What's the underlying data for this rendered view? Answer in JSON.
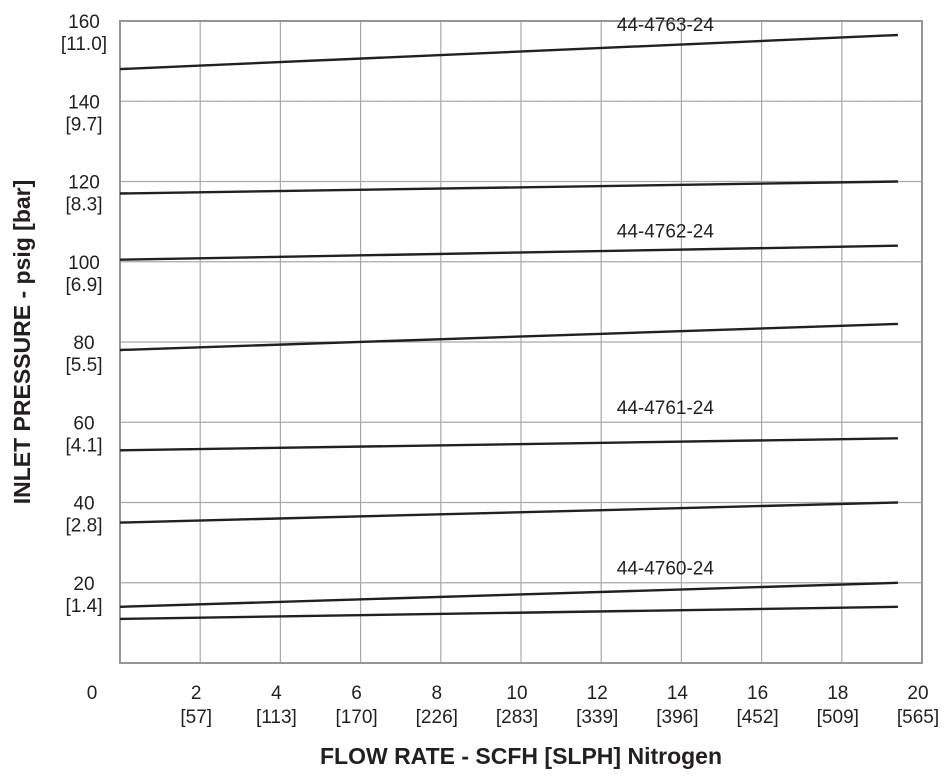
{
  "chart_data": {
    "type": "line",
    "xlabel": "FLOW RATE - SCFH [SLPH] Nitrogen",
    "ylabel": "INLET PRESSURE - psig [bar]",
    "xlim": [
      0,
      20
    ],
    "ylim": [
      0,
      160
    ],
    "grid": true,
    "x_ticks": [
      {
        "value": 0,
        "primary": "0",
        "secondary": ""
      },
      {
        "value": 2,
        "primary": "2",
        "secondary": "[57]"
      },
      {
        "value": 4,
        "primary": "4",
        "secondary": "[113]"
      },
      {
        "value": 6,
        "primary": "6",
        "secondary": "[170]"
      },
      {
        "value": 8,
        "primary": "8",
        "secondary": "[226]"
      },
      {
        "value": 10,
        "primary": "10",
        "secondary": "[283]"
      },
      {
        "value": 12,
        "primary": "12",
        "secondary": "[339]"
      },
      {
        "value": 14,
        "primary": "14",
        "secondary": "[396]"
      },
      {
        "value": 16,
        "primary": "16",
        "secondary": "[452]"
      },
      {
        "value": 18,
        "primary": "18",
        "secondary": "[509]"
      },
      {
        "value": 20,
        "primary": "20",
        "secondary": "[565]"
      }
    ],
    "y_ticks": [
      {
        "value": 20,
        "primary": "20",
        "secondary": "[1.4]"
      },
      {
        "value": 40,
        "primary": "40",
        "secondary": "[2.8]"
      },
      {
        "value": 60,
        "primary": "60",
        "secondary": "[4.1]"
      },
      {
        "value": 80,
        "primary": "80",
        "secondary": "[5.5]"
      },
      {
        "value": 100,
        "primary": "100",
        "secondary": "[6.9]"
      },
      {
        "value": 120,
        "primary": "120",
        "secondary": "[8.3]"
      },
      {
        "value": 140,
        "primary": "140",
        "secondary": "[9.7]"
      },
      {
        "value": 160,
        "primary": "160",
        "secondary": "[11.0]"
      }
    ],
    "lines": [
      {
        "x": [
          0,
          19.4
        ],
        "y": [
          11,
          14
        ]
      },
      {
        "x": [
          0,
          19.4
        ],
        "y": [
          14,
          20
        ]
      },
      {
        "x": [
          0,
          19.4
        ],
        "y": [
          35,
          40
        ]
      },
      {
        "x": [
          0,
          19.4
        ],
        "y": [
          53,
          56
        ]
      },
      {
        "x": [
          0,
          19.4
        ],
        "y": [
          78,
          84.5
        ]
      },
      {
        "x": [
          0,
          19.4
        ],
        "y": [
          100.5,
          104
        ]
      },
      {
        "x": [
          0,
          19.4
        ],
        "y": [
          117,
          120
        ]
      },
      {
        "x": [
          0,
          19.4
        ],
        "y": [
          148,
          156.5
        ]
      }
    ],
    "annotations": [
      {
        "text": "44-4763-24",
        "x": 13.6,
        "y": 157.5
      },
      {
        "text": "44-4762-24",
        "x": 13.6,
        "y": 106
      },
      {
        "text": "44-4761-24",
        "x": 13.6,
        "y": 62
      },
      {
        "text": "44-4760-24",
        "x": 13.6,
        "y": 22
      }
    ],
    "colors": {
      "line": "#231f20",
      "grid": "#a7a9ac",
      "frame": "#939598",
      "text": "#231f20"
    }
  }
}
